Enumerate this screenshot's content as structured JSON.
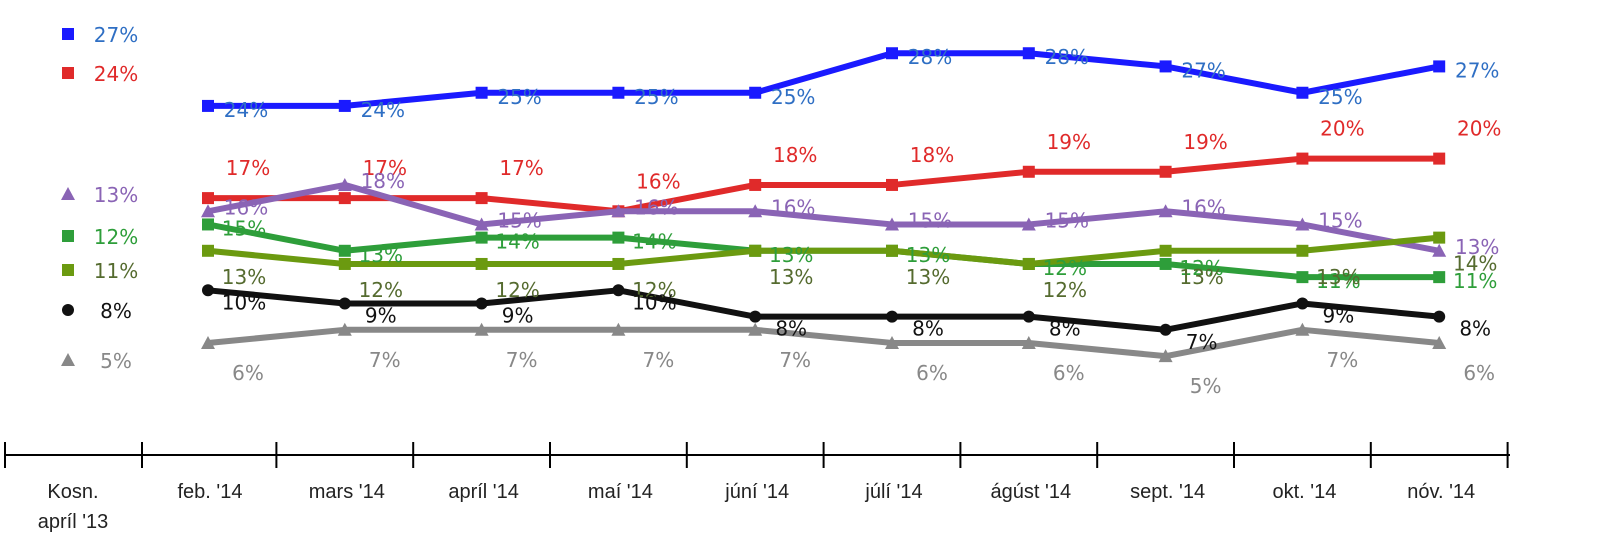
{
  "chart_data": {
    "type": "line",
    "title": "",
    "xlabel": "",
    "ylabel": "",
    "ylim": [
      0,
      30
    ],
    "grid": false,
    "legend": "none",
    "baseline": {
      "label_lines": [
        "Kosn.",
        "apríl '13"
      ],
      "values": [
        27,
        24,
        13,
        12,
        11,
        8,
        5
      ]
    },
    "categories": [
      "feb. '14",
      "mars '14",
      "apríl '14",
      "maí '14",
      "júní '14",
      "júlí '14",
      "ágúst '14",
      "sept. '14",
      "okt. '14",
      "nóv. '14"
    ],
    "series": [
      {
        "name": "series-blue",
        "color": "#1a1aff",
        "label_color": "#2f6fc4",
        "marker": "square",
        "values": [
          24,
          24,
          25,
          25,
          25,
          28,
          28,
          27,
          25,
          27
        ]
      },
      {
        "name": "series-red",
        "color": "#e02a2a",
        "label_color": "#e02a2a",
        "marker": "square",
        "values": [
          17,
          17,
          17,
          16,
          18,
          18,
          19,
          19,
          20,
          20
        ]
      },
      {
        "name": "series-purple",
        "color": "#8a64b5",
        "label_color": "#8a64b5",
        "marker": "triangle",
        "values": [
          16,
          18,
          15,
          16,
          16,
          15,
          15,
          16,
          15,
          13
        ]
      },
      {
        "name": "series-green",
        "color": "#2e9e3a",
        "label_color": "#2e9e3a",
        "marker": "square",
        "values": [
          15,
          13,
          14,
          14,
          13,
          13,
          12,
          12,
          11,
          11
        ]
      },
      {
        "name": "series-olive",
        "color": "#6b9a10",
        "label_color": "#556b2f",
        "marker": "square",
        "values": [
          13,
          12,
          12,
          12,
          13,
          13,
          12,
          13,
          13,
          14
        ]
      },
      {
        "name": "series-black",
        "color": "#111111",
        "label_color": "#111111",
        "marker": "circle",
        "values": [
          10,
          9,
          9,
          10,
          8,
          8,
          8,
          7,
          9,
          8
        ]
      },
      {
        "name": "series-gray",
        "color": "#888888",
        "label_color": "#888888",
        "marker": "triangle",
        "values": [
          6,
          7,
          7,
          7,
          7,
          6,
          6,
          5,
          7,
          6
        ]
      }
    ]
  }
}
